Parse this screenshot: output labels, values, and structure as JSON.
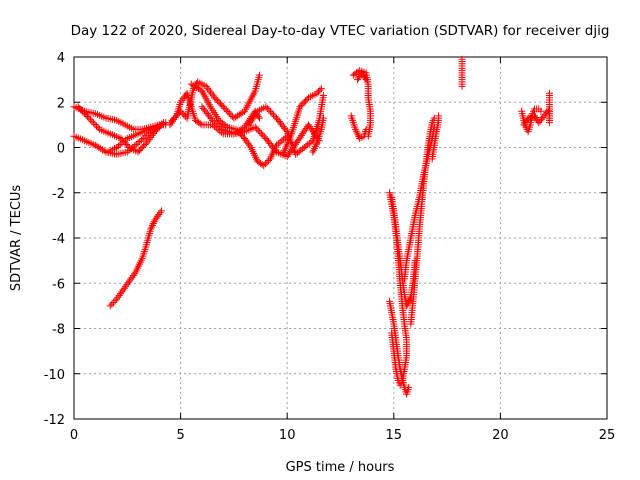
{
  "chart_data": {
    "type": "scatter",
    "title": "Day 122 of 2020, Sidereal Day-to-day VTEC variation (SDTVAR) for receiver djig",
    "xlabel": "GPS time / hours",
    "ylabel": "SDTVAR / TECUs",
    "xlim": [
      0,
      25
    ],
    "ylim": [
      -12,
      4
    ],
    "xticks": [
      0,
      5,
      10,
      15,
      20,
      25
    ],
    "yticks": [
      -12,
      -10,
      -8,
      -6,
      -4,
      -2,
      0,
      2,
      4
    ],
    "grid": true,
    "marker": "+",
    "color": "#ff0000",
    "tracks": [
      {
        "name": "track-1",
        "points": [
          [
            0.0,
            1.8
          ],
          [
            0.5,
            1.6
          ],
          [
            1.0,
            1.5
          ],
          [
            1.5,
            1.3
          ],
          [
            2.0,
            1.2
          ],
          [
            2.4,
            1.0
          ],
          [
            2.8,
            0.8
          ],
          [
            3.2,
            0.8
          ],
          [
            3.6,
            0.9
          ],
          [
            4.0,
            1.0
          ],
          [
            4.3,
            1.0
          ]
        ]
      },
      {
        "name": "track-2",
        "points": [
          [
            0.0,
            0.5
          ],
          [
            0.5,
            0.3
          ],
          [
            1.0,
            0.1
          ],
          [
            1.5,
            -0.2
          ],
          [
            2.0,
            -0.3
          ],
          [
            2.5,
            -0.2
          ],
          [
            3.0,
            0.2
          ],
          [
            3.5,
            0.6
          ],
          [
            4.0,
            1.0
          ],
          [
            4.3,
            1.1
          ]
        ]
      },
      {
        "name": "track-3",
        "points": [
          [
            0.2,
            1.8
          ],
          [
            0.7,
            1.3
          ],
          [
            1.2,
            0.8
          ],
          [
            1.7,
            0.6
          ],
          [
            2.2,
            0.4
          ],
          [
            2.6,
            0.0
          ],
          [
            3.0,
            -0.2
          ],
          [
            3.4,
            0.2
          ],
          [
            3.8,
            0.7
          ],
          [
            4.2,
            1.1
          ]
        ]
      },
      {
        "name": "track-4",
        "points": [
          [
            1.6,
            -0.2
          ],
          [
            2.0,
            0.0
          ],
          [
            2.5,
            0.4
          ],
          [
            3.0,
            0.6
          ],
          [
            3.5,
            0.8
          ],
          [
            4.0,
            0.9
          ]
        ]
      },
      {
        "name": "track-5",
        "points": [
          [
            1.7,
            -7.0
          ],
          [
            2.0,
            -6.7
          ],
          [
            2.3,
            -6.3
          ],
          [
            2.6,
            -5.9
          ],
          [
            2.9,
            -5.5
          ],
          [
            3.2,
            -4.9
          ],
          [
            3.4,
            -4.3
          ],
          [
            3.6,
            -3.6
          ],
          [
            3.8,
            -3.2
          ],
          [
            4.1,
            -2.8
          ]
        ]
      },
      {
        "name": "track-6",
        "points": [
          [
            4.5,
            1.0
          ],
          [
            4.8,
            1.4
          ],
          [
            5.0,
            2.0
          ],
          [
            5.3,
            2.4
          ],
          [
            5.5,
            1.8
          ],
          [
            5.7,
            1.2
          ],
          [
            6.0,
            1.0
          ],
          [
            6.5,
            1.0
          ],
          [
            7.0,
            0.6
          ],
          [
            7.5,
            0.6
          ],
          [
            8.0,
            0.9
          ],
          [
            8.5,
            1.6
          ],
          [
            8.7,
            1.3
          ]
        ]
      },
      {
        "name": "track-7",
        "points": [
          [
            4.6,
            1.2
          ],
          [
            5.0,
            1.6
          ],
          [
            5.3,
            1.3
          ],
          [
            5.6,
            2.6
          ],
          [
            5.8,
            2.9
          ],
          [
            6.2,
            2.7
          ],
          [
            6.6,
            2.2
          ],
          [
            7.0,
            1.8
          ],
          [
            7.5,
            1.3
          ],
          [
            8.0,
            1.6
          ],
          [
            8.5,
            2.5
          ],
          [
            8.7,
            3.2
          ]
        ]
      },
      {
        "name": "track-8",
        "points": [
          [
            5.5,
            2.8
          ],
          [
            6.0,
            2.5
          ],
          [
            6.4,
            1.8
          ],
          [
            6.8,
            1.2
          ],
          [
            7.2,
            0.9
          ],
          [
            7.6,
            0.8
          ],
          [
            8.0,
            0.4
          ],
          [
            8.3,
            0.0
          ],
          [
            8.6,
            -0.6
          ],
          [
            8.9,
            -0.8
          ],
          [
            9.2,
            -0.5
          ],
          [
            9.5,
            0.1
          ],
          [
            10.0,
            0.5
          ]
        ]
      },
      {
        "name": "track-9",
        "points": [
          [
            6.0,
            1.8
          ],
          [
            6.5,
            1.2
          ],
          [
            7.0,
            0.8
          ],
          [
            7.5,
            0.6
          ],
          [
            8.0,
            0.7
          ],
          [
            8.5,
            0.9
          ],
          [
            9.0,
            0.4
          ],
          [
            9.5,
            -0.2
          ],
          [
            10.0,
            -0.4
          ],
          [
            10.5,
            0.3
          ],
          [
            11.0,
            1.0
          ],
          [
            11.5,
            0.3
          ]
        ]
      },
      {
        "name": "track-10",
        "points": [
          [
            8.2,
            1.0
          ],
          [
            8.6,
            1.6
          ],
          [
            9.0,
            1.8
          ],
          [
            9.5,
            1.3
          ],
          [
            10.0,
            0.7
          ],
          [
            10.4,
            -0.3
          ],
          [
            10.8,
            0.0
          ],
          [
            11.2,
            0.3
          ],
          [
            11.5,
            1.2
          ],
          [
            11.7,
            2.3
          ]
        ]
      },
      {
        "name": "track-11",
        "points": [
          [
            9.8,
            -0.3
          ],
          [
            10.2,
            0.6
          ],
          [
            10.6,
            1.8
          ],
          [
            11.0,
            2.2
          ],
          [
            11.4,
            2.4
          ],
          [
            11.6,
            2.6
          ]
        ]
      },
      {
        "name": "track-12",
        "points": [
          [
            11.2,
            -0.2
          ],
          [
            11.4,
            0.2
          ],
          [
            11.6,
            0.8
          ],
          [
            11.7,
            1.3
          ]
        ]
      },
      {
        "name": "track-13",
        "points": [
          [
            13.0,
            1.4
          ],
          [
            13.2,
            0.8
          ],
          [
            13.4,
            0.4
          ],
          [
            13.6,
            0.5
          ],
          [
            13.7,
            0.8
          ]
        ]
      },
      {
        "name": "track-14",
        "points": [
          [
            13.1,
            3.2
          ],
          [
            13.4,
            3.4
          ],
          [
            13.7,
            3.3
          ],
          [
            13.8,
            2.8
          ],
          [
            13.8,
            2.2
          ],
          [
            13.9,
            1.6
          ],
          [
            13.9,
            1.0
          ],
          [
            13.8,
            0.5
          ]
        ]
      },
      {
        "name": "track-15",
        "points": [
          [
            13.3,
            3.0
          ],
          [
            13.5,
            3.3
          ],
          [
            13.7,
            3.0
          ]
        ]
      },
      {
        "name": "track-16",
        "points": [
          [
            14.8,
            -2.0
          ],
          [
            14.9,
            -2.5
          ],
          [
            15.0,
            -3.0
          ],
          [
            15.1,
            -3.8
          ],
          [
            15.2,
            -4.8
          ],
          [
            15.3,
            -6.0
          ],
          [
            15.4,
            -7.0
          ],
          [
            15.5,
            -7.8
          ],
          [
            15.6,
            -8.5
          ],
          [
            15.6,
            -9.2
          ],
          [
            15.5,
            -9.8
          ],
          [
            15.4,
            -10.3
          ],
          [
            15.3,
            -10.5
          ],
          [
            15.2,
            -10.3
          ],
          [
            15.1,
            -9.8
          ],
          [
            15.0,
            -9.0
          ],
          [
            14.9,
            -8.2
          ]
        ]
      },
      {
        "name": "track-17",
        "points": [
          [
            14.8,
            -6.8
          ],
          [
            14.9,
            -7.3
          ],
          [
            15.0,
            -7.8
          ],
          [
            15.1,
            -8.5
          ],
          [
            15.2,
            -9.2
          ],
          [
            15.3,
            -9.8
          ],
          [
            15.4,
            -10.2
          ],
          [
            15.5,
            -10.6
          ],
          [
            15.6,
            -10.9
          ],
          [
            15.7,
            -10.6
          ]
        ]
      },
      {
        "name": "track-18",
        "points": [
          [
            14.9,
            -2.2
          ],
          [
            15.0,
            -2.8
          ],
          [
            15.1,
            -3.5
          ],
          [
            15.2,
            -4.3
          ],
          [
            15.3,
            -5.0
          ],
          [
            15.4,
            -5.8
          ],
          [
            15.5,
            -6.5
          ],
          [
            15.6,
            -7.0
          ],
          [
            15.8,
            -6.6
          ],
          [
            15.9,
            -6.0
          ],
          [
            16.0,
            -5.0
          ]
        ]
      },
      {
        "name": "track-19",
        "points": [
          [
            15.8,
            -7.8
          ],
          [
            15.9,
            -6.8
          ],
          [
            16.0,
            -5.8
          ],
          [
            16.1,
            -4.8
          ],
          [
            16.2,
            -3.6
          ],
          [
            16.3,
            -2.6
          ],
          [
            16.4,
            -1.6
          ],
          [
            16.5,
            -0.8
          ],
          [
            16.6,
            0.0
          ],
          [
            16.7,
            0.6
          ],
          [
            16.8,
            1.1
          ],
          [
            16.9,
            1.3
          ]
        ]
      },
      {
        "name": "track-20",
        "points": [
          [
            15.5,
            -5.8
          ],
          [
            15.6,
            -5.0
          ],
          [
            15.8,
            -4.0
          ],
          [
            16.0,
            -3.0
          ],
          [
            16.2,
            -2.2
          ],
          [
            16.4,
            -1.2
          ],
          [
            16.6,
            -0.4
          ],
          [
            16.8,
            0.4
          ],
          [
            16.9,
            0.9
          ]
        ]
      },
      {
        "name": "track-21",
        "points": [
          [
            16.8,
            -0.5
          ],
          [
            16.9,
            0.1
          ],
          [
            17.0,
            0.7
          ],
          [
            17.1,
            1.2
          ],
          [
            17.1,
            1.4
          ]
        ]
      },
      {
        "name": "track-22",
        "points": [
          [
            18.2,
            3.9
          ],
          [
            18.2,
            3.4
          ],
          [
            18.2,
            2.7
          ]
        ]
      },
      {
        "name": "track-23",
        "points": [
          [
            21.0,
            1.6
          ],
          [
            21.1,
            1.2
          ],
          [
            21.2,
            0.9
          ],
          [
            21.3,
            0.7
          ],
          [
            21.4,
            1.0
          ],
          [
            21.5,
            1.5
          ],
          [
            21.6,
            1.7
          ],
          [
            21.8,
            1.7
          ],
          [
            21.9,
            1.6
          ]
        ]
      },
      {
        "name": "track-24",
        "points": [
          [
            21.1,
            1.0
          ],
          [
            21.3,
            1.3
          ],
          [
            21.6,
            1.4
          ],
          [
            21.8,
            1.1
          ],
          [
            22.3,
            1.7
          ],
          [
            22.3,
            1.1
          ],
          [
            22.3,
            2.4
          ]
        ]
      }
    ]
  }
}
